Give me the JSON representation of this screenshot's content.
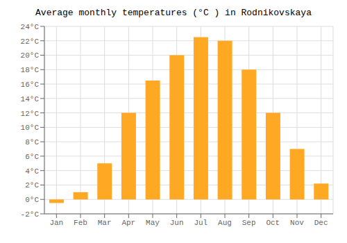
{
  "chart_data": {
    "type": "bar",
    "title": "Average monthly temperatures (°C ) in Rodnikovskaya",
    "categories": [
      "Jan",
      "Feb",
      "Mar",
      "Apr",
      "May",
      "Jun",
      "Jul",
      "Aug",
      "Sep",
      "Oct",
      "Nov",
      "Dec"
    ],
    "values": [
      -0.5,
      1.0,
      5.0,
      12.0,
      16.5,
      20.0,
      22.5,
      22.0,
      18.0,
      12.0,
      7.0,
      2.2
    ],
    "color": "#FFA824",
    "ylim": [
      -2,
      24
    ],
    "yticks": [
      {
        "value": -2,
        "label": "-2°C"
      },
      {
        "value": 0,
        "label": "0°C"
      },
      {
        "value": 2,
        "label": "2°C"
      },
      {
        "value": 4,
        "label": "4°C"
      },
      {
        "value": 6,
        "label": "6°C"
      },
      {
        "value": 8,
        "label": "8°C"
      },
      {
        "value": 10,
        "label": "10°C"
      },
      {
        "value": 12,
        "label": "12°C"
      },
      {
        "value": 14,
        "label": "14°C"
      },
      {
        "value": 16,
        "label": "16°C"
      },
      {
        "value": 18,
        "label": "18°C"
      },
      {
        "value": 20,
        "label": "20°C"
      },
      {
        "value": 22,
        "label": "22°C"
      },
      {
        "value": 24,
        "label": "24°C"
      }
    ],
    "grid": true
  }
}
